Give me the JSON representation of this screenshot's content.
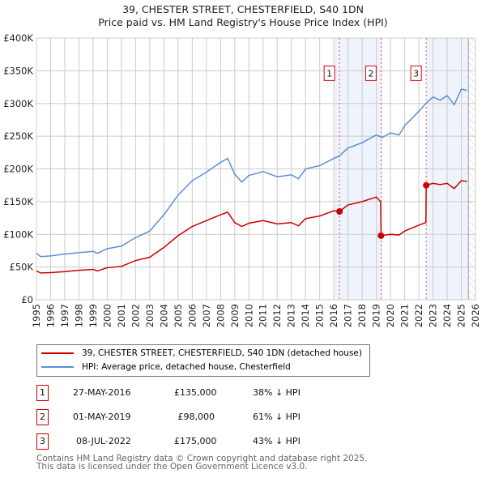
{
  "chart_data": {
    "type": "line",
    "title": "39, CHESTER STREET, CHESTERFIELD, S40 1DN",
    "subtitle": "Price paid vs. HM Land Registry's House Price Index (HPI)",
    "ylim": [
      0,
      400000
    ],
    "xlim": [
      1995,
      2026
    ],
    "yticks": [
      0,
      50000,
      100000,
      150000,
      200000,
      250000,
      300000,
      350000,
      400000
    ],
    "ytick_labels": [
      "£0",
      "£50K",
      "£100K",
      "£150K",
      "£200K",
      "£250K",
      "£300K",
      "£350K",
      "£400K"
    ],
    "xticks": [
      1995,
      1996,
      1997,
      1998,
      1999,
      2000,
      2001,
      2002,
      2003,
      2004,
      2005,
      2006,
      2007,
      2008,
      2009,
      2010,
      2011,
      2012,
      2013,
      2014,
      2015,
      2016,
      2017,
      2018,
      2019,
      2020,
      2021,
      2022,
      2023,
      2024,
      2025,
      2026
    ],
    "grid": true,
    "series": [
      {
        "name": "39, CHESTER STREET, CHESTERFIELD, S40 1DN (detached house)",
        "color": "#cc0000",
        "x": [
          1995,
          1995.3,
          1996,
          1997,
          1998,
          1999,
          1999.3,
          2000,
          2001,
          2002,
          2003,
          2004,
          2005,
          2006,
          2007,
          2008,
          2008.5,
          2009,
          2009.5,
          2010,
          2011,
          2012,
          2013,
          2013.5,
          2014,
          2015,
          2016,
          2016.4,
          2017,
          2018,
          2019,
          2019.3,
          2019.34,
          2020,
          2020.6,
          2021,
          2022,
          2022.5,
          2022.52,
          2023,
          2023.5,
          2024,
          2024.5,
          2025,
          2025.4
        ],
        "y": [
          44000,
          41000,
          41500,
          43000,
          45000,
          46500,
          44000,
          49000,
          51000,
          60000,
          65000,
          80000,
          98000,
          112000,
          121000,
          130000,
          134000,
          118000,
          112000,
          117000,
          121000,
          116000,
          118000,
          113000,
          124000,
          128000,
          136000,
          135000,
          145000,
          150000,
          157000,
          150000,
          98000,
          100000,
          99000,
          105000,
          114000,
          118000,
          175000,
          178000,
          176000,
          178000,
          170000,
          182000,
          181000
        ]
      },
      {
        "name": "HPI: Average price, detached house, Chesterfield",
        "color": "#5b8fd4",
        "x": [
          1995,
          1995.3,
          1996,
          1997,
          1998,
          1999,
          1999.3,
          2000,
          2001,
          2002,
          2003,
          2004,
          2005,
          2006,
          2007,
          2008,
          2008.5,
          2009,
          2009.5,
          2010,
          2011,
          2012,
          2013,
          2013.5,
          2014,
          2015,
          2016,
          2016.4,
          2017,
          2018,
          2019,
          2019.4,
          2020,
          2020.6,
          2021,
          2022,
          2022.5,
          2023,
          2023.5,
          2024,
          2024.5,
          2025,
          2025.4
        ],
        "y": [
          71000,
          66000,
          67000,
          70000,
          72000,
          74000,
          71000,
          78000,
          82000,
          95000,
          105000,
          130000,
          160000,
          182000,
          195000,
          210000,
          216000,
          192000,
          180000,
          190000,
          196000,
          188000,
          191000,
          185000,
          200000,
          205000,
          216000,
          220000,
          232000,
          240000,
          252000,
          248000,
          255000,
          252000,
          266000,
          288000,
          300000,
          310000,
          305000,
          312000,
          298000,
          322000,
          320000
        ]
      }
    ],
    "sales": [
      {
        "label": "1",
        "x": 2016.4,
        "price": 135000,
        "date": "27-MAY-2016",
        "price_text": "£135,000",
        "hpi": "38% ↓ HPI"
      },
      {
        "label": "2",
        "x": 2019.33,
        "price": 98000,
        "date": "01-MAY-2019",
        "price_text": "£98,000",
        "hpi": "61% ↓ HPI"
      },
      {
        "label": "3",
        "x": 2022.52,
        "price": 175000,
        "date": "08-JUL-2022",
        "price_text": "£175,000",
        "hpi": "43% ↓ HPI"
      }
    ],
    "shaded": [
      [
        2016.0,
        2019.45
      ],
      [
        2022.5,
        2025.45
      ]
    ],
    "forecast_from": 2025.5
  },
  "footer": {
    "line1": "Contains HM Land Registry data © Crown copyright and database right 2025.",
    "line2": "This data is licensed under the Open Government Licence v3.0."
  }
}
